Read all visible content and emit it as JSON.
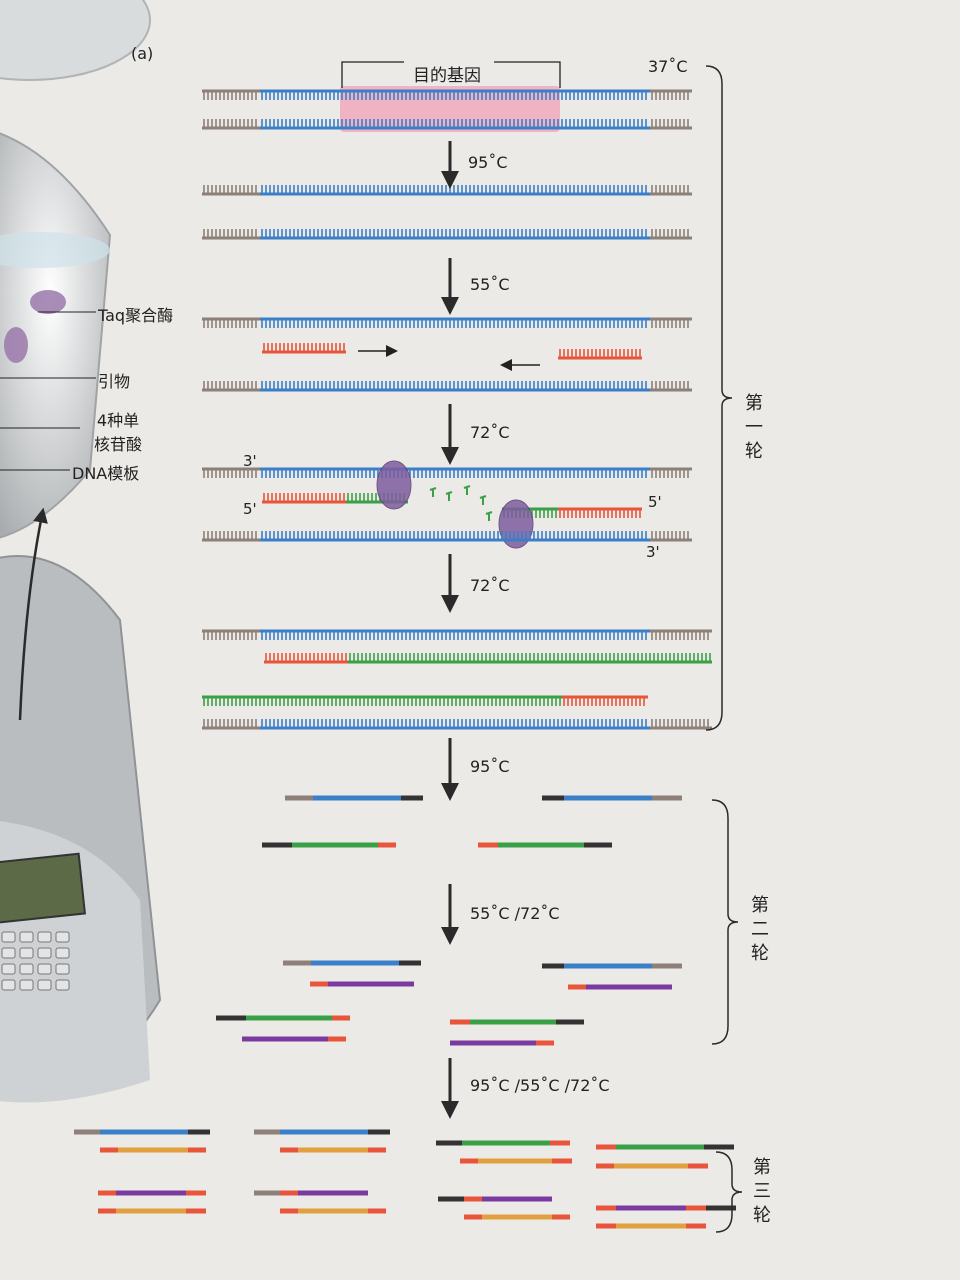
{
  "panel_label": "(a)",
  "target_gene_label": "目的基因",
  "temps": {
    "t37": "37˚C",
    "step95": "95˚C",
    "step55": "55˚C",
    "step72a": "72˚C",
    "step72b": "72˚C",
    "step95b": "95˚C",
    "step55_72": "55˚C /72˚C",
    "step95_55_72": "95˚C /55˚C /72˚C"
  },
  "ends": {
    "three_prime": "3'",
    "five_prime": "5'"
  },
  "legend": {
    "taq": "Taq聚合酶",
    "primer": "引物",
    "dntp_line1": "4种单",
    "dntp_line2": "核苷酸",
    "template": "DNA模板"
  },
  "rounds": {
    "round1": [
      "第",
      "一",
      "轮"
    ],
    "round2": [
      "第",
      "二",
      "轮"
    ],
    "round3": [
      "第",
      "三",
      "轮"
    ]
  },
  "colors": {
    "template_blue": "#3b7fc8",
    "primer_red": "#e8553a",
    "new_green": "#3aa048",
    "purple": "#7b3aa0",
    "orange": "#e0a040",
    "flank_grey": "#8c8078",
    "gene_highlight": "#f2a0b8"
  }
}
